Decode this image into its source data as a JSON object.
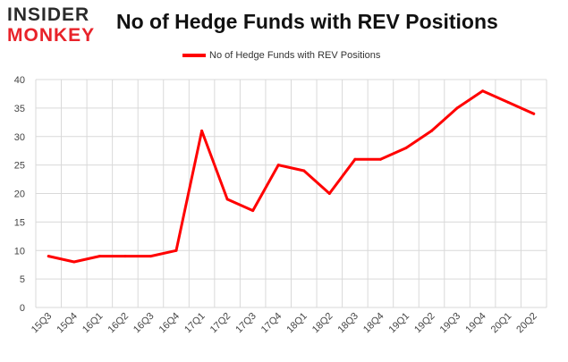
{
  "logo": {
    "line1": "INSIDER",
    "line2": "MONKEY"
  },
  "chart_data": {
    "type": "line",
    "title": "No of Hedge Funds with REV Positions",
    "categories": [
      "15Q3",
      "15Q4",
      "16Q1",
      "16Q2",
      "16Q3",
      "16Q4",
      "17Q1",
      "17Q2",
      "17Q3",
      "17Q4",
      "18Q1",
      "18Q2",
      "18Q3",
      "18Q4",
      "19Q1",
      "19Q2",
      "19Q3",
      "19Q4",
      "20Q1",
      "20Q2"
    ],
    "series": [
      {
        "name": "No of Hedge Funds with REV Positions",
        "values": [
          9,
          8,
          9,
          9,
          9,
          10,
          31,
          19,
          17,
          25,
          24,
          20,
          26,
          26,
          28,
          31,
          35,
          38,
          36,
          34
        ]
      }
    ],
    "xlabel": "",
    "ylabel": "",
    "ylim": [
      0,
      40
    ],
    "yticks": [
      0,
      5,
      10,
      15,
      20,
      25,
      30,
      35,
      40
    ],
    "grid": true,
    "legend_position": "top-center",
    "colors": {
      "series": "#ff0000",
      "grid": "#d9d9d9",
      "logo_dark": "#2a2a2a",
      "logo_red": "#e8232a"
    }
  }
}
